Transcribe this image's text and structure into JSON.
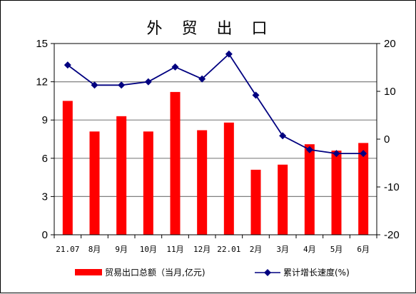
{
  "chart_data": {
    "type": "bar+line",
    "title": "外 贸 出 口",
    "categories": [
      "21.07",
      "8月",
      "9月",
      "10月",
      "11月",
      "12月",
      "22.01",
      "2月",
      "3月",
      "4月",
      "5月",
      "6月"
    ],
    "series": [
      {
        "name": "贸易出口总额（当月,亿元)",
        "type": "bar",
        "axis": "left",
        "color": "#ff0000",
        "values": [
          10.5,
          8.1,
          9.3,
          8.1,
          11.2,
          8.2,
          8.8,
          5.1,
          5.5,
          7.1,
          6.6,
          7.2
        ]
      },
      {
        "name": "累计增长速度(%)",
        "type": "line",
        "axis": "right",
        "color": "#000080",
        "marker": "diamond",
        "values": [
          15.5,
          11.3,
          11.3,
          12.0,
          15.1,
          12.6,
          17.8,
          9.2,
          0.7,
          -2.2,
          -3.0,
          -3.0
        ]
      }
    ],
    "y_left": {
      "min": 0,
      "max": 15,
      "ticks": [
        "0",
        "3",
        "6",
        "9",
        "12",
        "15"
      ]
    },
    "y_right": {
      "min": -20,
      "max": 20,
      "ticks": [
        "-20",
        "-10",
        "0",
        "10",
        "20"
      ]
    },
    "grid": true,
    "legend_position": "bottom"
  }
}
